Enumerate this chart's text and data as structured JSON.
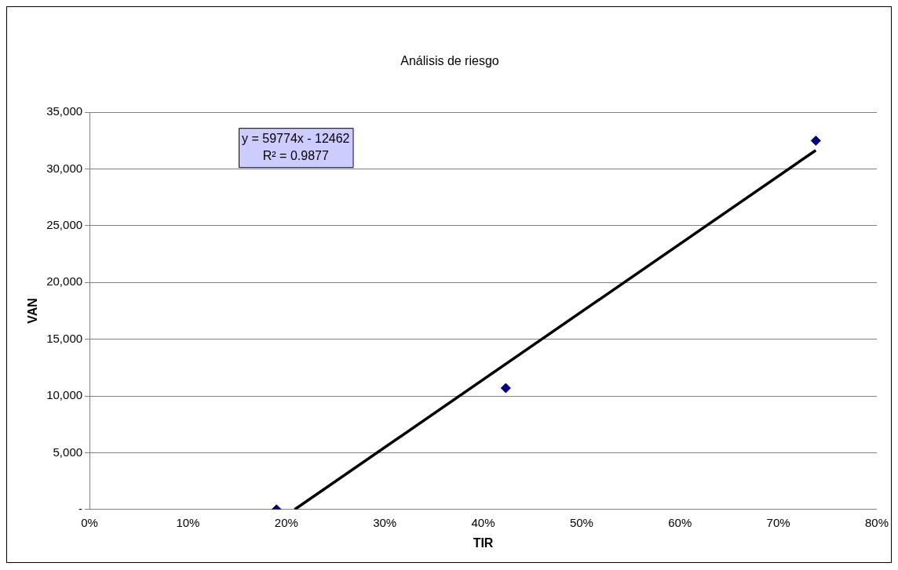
{
  "chart_data": {
    "type": "scatter",
    "title": "Análisis de riesgo",
    "xlabel": "TIR",
    "ylabel": "VAN",
    "series": [
      {
        "color": "#000080",
        "x": [
          19,
          42.3,
          73.8
        ],
        "values": [
          0,
          10700,
          32500
        ]
      },
      {
        "type": "line",
        "color": "#000000",
        "x": [
          20.85,
          73.8
        ],
        "values": [
          0,
          31650
        ],
        "marker": "none",
        "line_style": "solid"
      }
    ],
    "marker": "diamond",
    "xlim": [
      0,
      80
    ],
    "xticks": [
      {
        "value": 0,
        "label": "0%"
      },
      {
        "value": 10,
        "label": "10%"
      },
      {
        "value": 20,
        "label": "20%"
      },
      {
        "value": 30,
        "label": "30%"
      },
      {
        "value": 40,
        "label": "40%"
      },
      {
        "value": 50,
        "label": "50%"
      },
      {
        "value": 60,
        "label": "60%"
      },
      {
        "value": 70,
        "label": "70%"
      },
      {
        "value": 80,
        "label": "80%"
      }
    ],
    "ylim": [
      0,
      35000
    ],
    "yticks": [
      {
        "value": 0,
        "label": "-"
      },
      {
        "value": 5000,
        "label": "5,000"
      },
      {
        "value": 10000,
        "label": "10,000"
      },
      {
        "value": 15000,
        "label": "15,000"
      },
      {
        "value": 20000,
        "label": "20,000"
      },
      {
        "value": 25000,
        "label": "25,000"
      },
      {
        "value": 30000,
        "label": "30,000"
      },
      {
        "value": 35000,
        "label": "35,000"
      }
    ],
    "grid": "y",
    "legend": false,
    "annotations": [
      "y = 59774x - 12462",
      "R² = 0.9877"
    ]
  }
}
